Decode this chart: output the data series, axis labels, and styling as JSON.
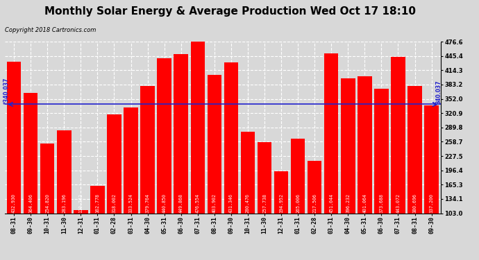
{
  "title": "Monthly Solar Energy & Average Production Wed Oct 17 18:10",
  "copyright": "Copyright 2018 Cartronics.com",
  "categories": [
    "08-31",
    "09-30",
    "10-31",
    "11-30",
    "12-31",
    "01-31",
    "02-28",
    "03-31",
    "04-30",
    "05-31",
    "06-30",
    "07-31",
    "08-31",
    "09-30",
    "10-31",
    "11-30",
    "12-31",
    "01-31",
    "02-28",
    "03-31",
    "04-30",
    "05-31",
    "06-30",
    "07-31",
    "08-31",
    "09-30"
  ],
  "values": [
    432.93,
    364.406,
    254.82,
    283.196,
    110.342,
    162.778,
    318.002,
    333.524,
    379.764,
    440.85,
    449.868,
    476.554,
    403.902,
    431.346,
    280.476,
    257.738,
    194.952,
    265.006,
    217.506,
    451.044,
    396.232,
    401.064,
    373.688,
    443.072,
    380.696,
    337.2
  ],
  "average": 340.037,
  "bar_color": "#ff0000",
  "average_line_color": "#2222cc",
  "ylim_min": 103.0,
  "ylim_max": 476.6,
  "yticks": [
    103.0,
    134.1,
    165.3,
    196.4,
    227.5,
    258.7,
    289.8,
    320.9,
    352.0,
    383.2,
    414.3,
    445.4,
    476.6
  ],
  "bg_color": "#d8d8d8",
  "plot_bg_color": "#d8d8d8",
  "grid_color": "#ffffff",
  "title_fontsize": 11,
  "tick_fontsize": 6,
  "copyright_fontsize": 6,
  "bar_value_fontsize": 4.8,
  "avg_left_label": "*340.037",
  "avg_right_label": "340.037"
}
